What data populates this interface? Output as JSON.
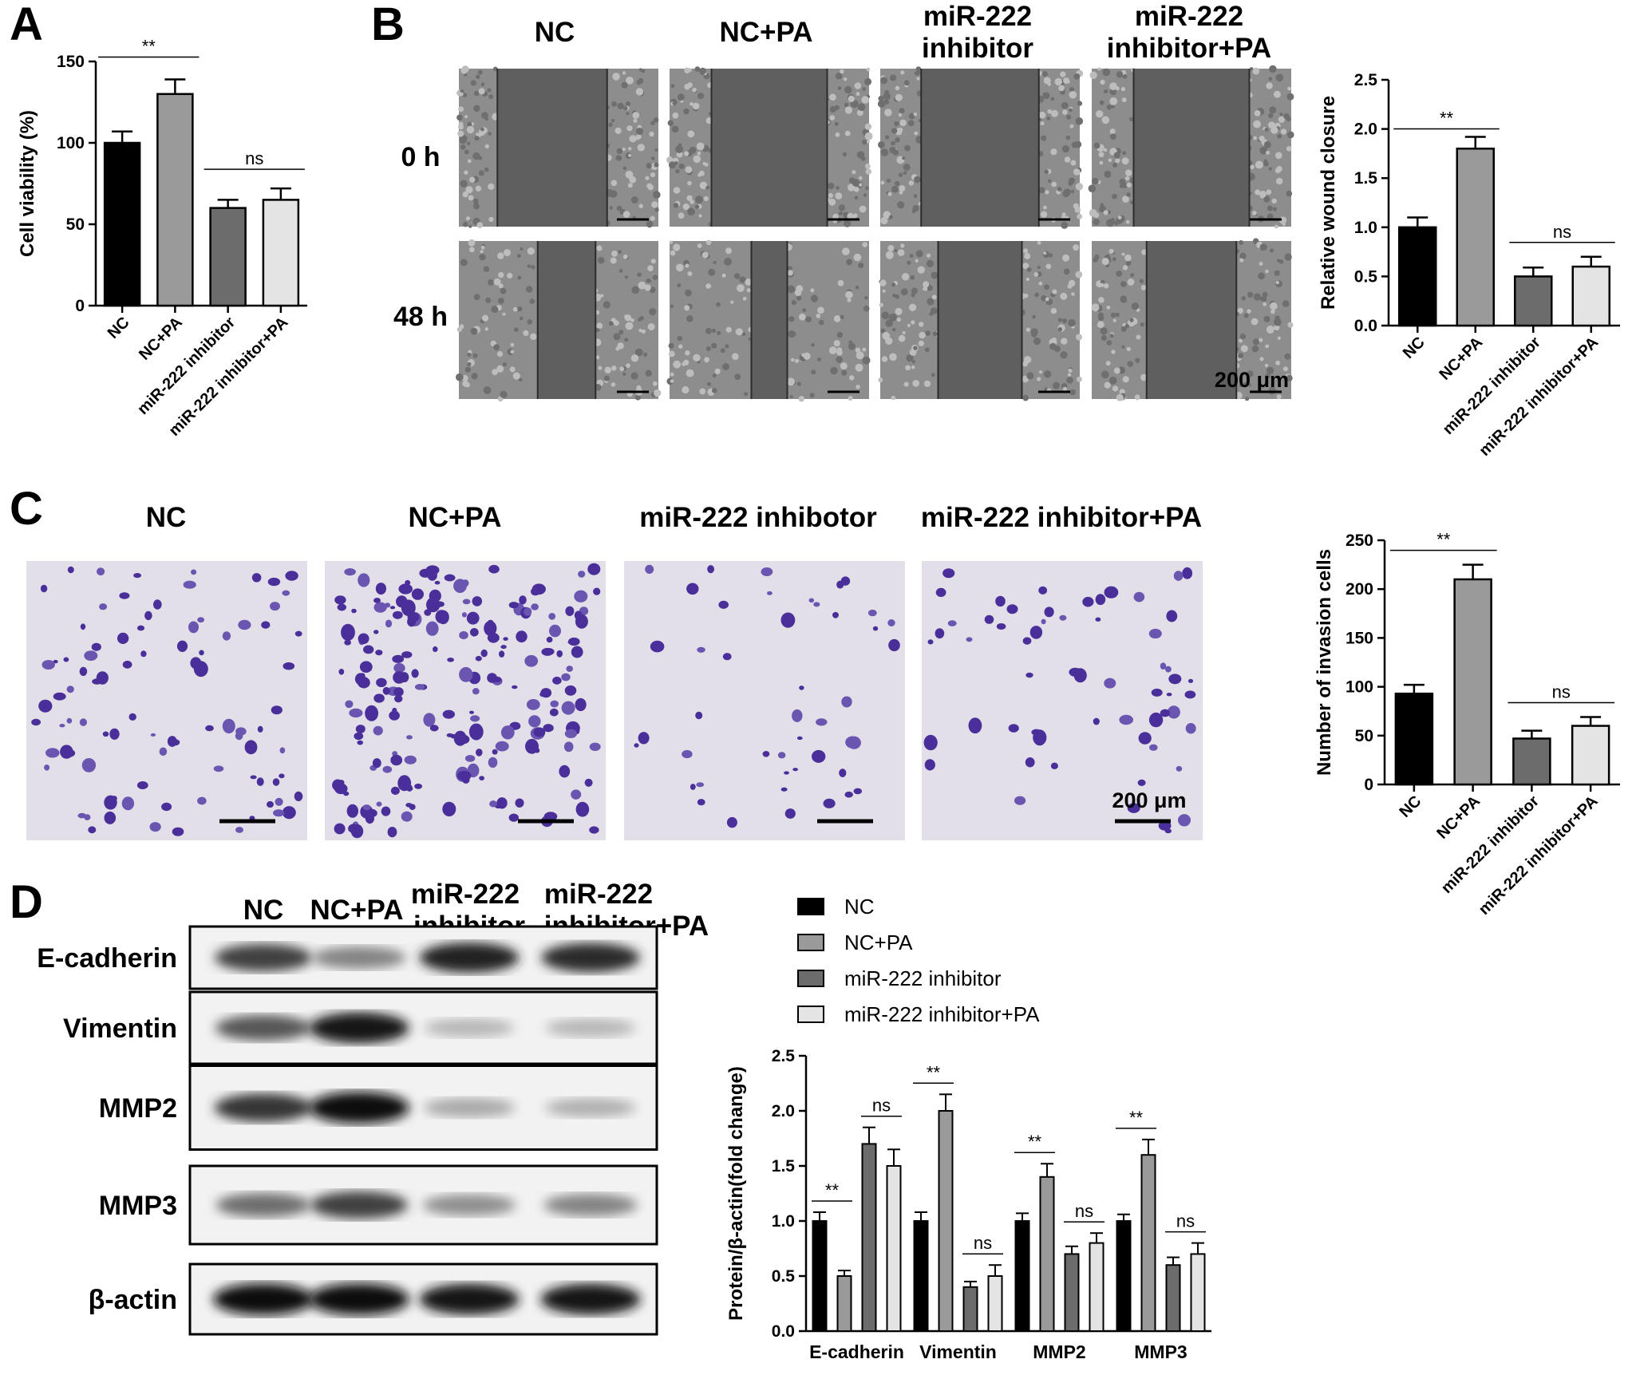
{
  "panels": {
    "a": {
      "letter": "A"
    },
    "b": {
      "letter": "B",
      "col_headers": [
        [
          "NC"
        ],
        [
          "NC+PA"
        ],
        [
          "miR-222",
          "inhibitor"
        ],
        [
          "miR-222",
          "inhibitor+PA"
        ]
      ],
      "row_labels": [
        "0 h",
        "48 h"
      ],
      "gap_fractions_0h": [
        0.55,
        0.58,
        0.59,
        0.58
      ],
      "gap_fractions_48h": [
        0.29,
        0.18,
        0.42,
        0.45
      ],
      "scale_bar": "200 μm"
    },
    "c": {
      "letter": "C",
      "col_headers": [
        "NC",
        "NC+PA",
        "miR-222 inhibotor",
        "miR-222 inhibitor+PA"
      ],
      "cell_density": [
        90,
        210,
        45,
        60
      ],
      "scale_bar": "200 μm"
    },
    "d": {
      "letter": "D",
      "col_headers": [
        [
          "NC"
        ],
        [
          "NC+PA"
        ],
        [
          "miR-222",
          "inhibitor"
        ],
        [
          "miR-222",
          "inhibitor+PA"
        ]
      ],
      "row_labels": [
        "E-cadherin",
        "Vimentin",
        "MMP2",
        "MMP3",
        "β-actin"
      ],
      "band_intensity": [
        [
          0.75,
          0.45,
          0.9,
          0.85
        ],
        [
          0.65,
          0.95,
          0.22,
          0.22
        ],
        [
          0.8,
          1.0,
          0.28,
          0.25
        ],
        [
          0.55,
          0.75,
          0.4,
          0.45
        ],
        [
          1.0,
          1.0,
          0.95,
          0.95
        ]
      ]
    }
  },
  "colors": {
    "nc": "#000000",
    "nc_pa": "#9a9a9a",
    "inhibitor": "#6c6c6c",
    "inhibitor_pa": "#e4e4e4"
  },
  "chart_data": [
    {
      "type": "bar",
      "categories": [
        "NC",
        "NC+PA",
        "miR-222 inhibitor",
        "miR-222 inhibitor+PA"
      ],
      "values": [
        100,
        130,
        60,
        65
      ],
      "errors": [
        7,
        9,
        5,
        7
      ],
      "ylabel": "Cell viability (%)",
      "ylim": [
        0,
        150
      ],
      "yticks": [
        0,
        50,
        100,
        150
      ],
      "comparisons": [
        {
          "pair": [
            0,
            1
          ],
          "label": "**"
        },
        {
          "pair": [
            2,
            3
          ],
          "label": "ns"
        }
      ]
    },
    {
      "type": "bar",
      "categories": [
        "NC",
        "NC+PA",
        "miR-222 inhibitor",
        "miR-222 inhibitor+PA"
      ],
      "values": [
        1.0,
        1.8,
        0.5,
        0.6
      ],
      "errors": [
        0.1,
        0.12,
        0.09,
        0.1
      ],
      "ylabel": "Relative wound closure",
      "ylim": [
        0,
        2.5
      ],
      "yticks": [
        0.0,
        0.5,
        1.0,
        1.5,
        2.0,
        2.5
      ],
      "comparisons": [
        {
          "pair": [
            0,
            1
          ],
          "label": "**"
        },
        {
          "pair": [
            2,
            3
          ],
          "label": "ns"
        }
      ]
    },
    {
      "type": "bar",
      "categories": [
        "NC",
        "NC+PA",
        "miR-222 inhibitor",
        "miR-222 inhibitor+PA"
      ],
      "values": [
        93,
        210,
        47,
        60
      ],
      "errors": [
        9,
        15,
        8,
        9
      ],
      "ylabel": "Number of invasion cells",
      "ylim": [
        0,
        250
      ],
      "yticks": [
        0,
        50,
        100,
        150,
        200,
        250
      ],
      "comparisons": [
        {
          "pair": [
            0,
            1
          ],
          "label": "**"
        },
        {
          "pair": [
            2,
            3
          ],
          "label": "ns"
        }
      ]
    },
    {
      "type": "bar",
      "categories": [
        "E-cadherin",
        "Vimentin",
        "MMP2",
        "MMP3"
      ],
      "series": [
        {
          "name": "NC",
          "values": [
            1.0,
            1.0,
            1.0,
            1.0
          ],
          "errors": [
            0.08,
            0.08,
            0.07,
            0.06
          ]
        },
        {
          "name": "NC+PA",
          "values": [
            0.5,
            2.0,
            1.4,
            1.6
          ],
          "errors": [
            0.05,
            0.15,
            0.12,
            0.14
          ]
        },
        {
          "name": "miR-222 inhibitor",
          "values": [
            1.7,
            0.4,
            0.7,
            0.6
          ],
          "errors": [
            0.15,
            0.05,
            0.07,
            0.07
          ]
        },
        {
          "name": "miR-222 inhibitor+PA",
          "values": [
            1.5,
            0.5,
            0.8,
            0.7
          ],
          "errors": [
            0.15,
            0.1,
            0.09,
            0.1
          ]
        }
      ],
      "ylabel": "Protein/β-actin(fold change)",
      "ylim": [
        0,
        2.5
      ],
      "yticks": [
        0.0,
        0.5,
        1.0,
        1.5,
        2.0,
        2.5
      ],
      "legend": "top",
      "comparisons": [
        {
          "group": 0,
          "pair": [
            0,
            1
          ],
          "label": "**"
        },
        {
          "group": 0,
          "pair": [
            2,
            3
          ],
          "label": "ns"
        },
        {
          "group": 1,
          "pair": [
            0,
            1
          ],
          "label": "**"
        },
        {
          "group": 1,
          "pair": [
            2,
            3
          ],
          "label": "ns"
        },
        {
          "group": 2,
          "pair": [
            0,
            1
          ],
          "label": "**"
        },
        {
          "group": 2,
          "pair": [
            2,
            3
          ],
          "label": "ns"
        },
        {
          "group": 3,
          "pair": [
            0,
            1
          ],
          "label": "**"
        },
        {
          "group": 3,
          "pair": [
            2,
            3
          ],
          "label": "ns"
        }
      ]
    }
  ]
}
